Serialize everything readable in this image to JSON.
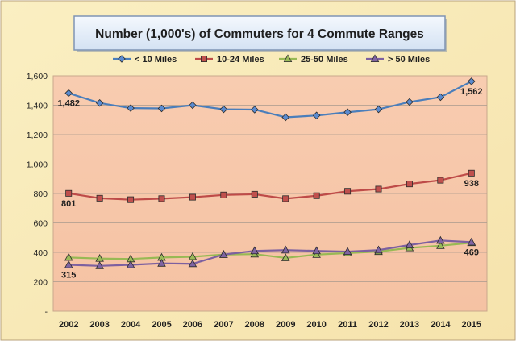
{
  "chart_data": {
    "type": "line",
    "title": "Number (1,000's) of Commuters for 4 Commute Ranges",
    "categories": [
      "2002",
      "2003",
      "2004",
      "2005",
      "2006",
      "2007",
      "2008",
      "2009",
      "2010",
      "2011",
      "2012",
      "2013",
      "2014",
      "2015"
    ],
    "ylim": [
      0,
      1600
    ],
    "yticks": [
      0,
      200,
      400,
      600,
      800,
      1000,
      1200,
      1400,
      1600
    ],
    "ytick_labels": [
      "-",
      "200",
      "400",
      "600",
      "800",
      "1,000",
      "1,200",
      "1,400",
      "1,600"
    ],
    "grid": true,
    "legend_position": "top",
    "series": [
      {
        "name": "< 10 Miles",
        "marker": "diamond",
        "color": "#4a7ebb",
        "fill": "#5b8bd0",
        "values": [
          1482,
          1415,
          1380,
          1378,
          1400,
          1372,
          1370,
          1318,
          1330,
          1352,
          1372,
          1422,
          1455,
          1562
        ],
        "labels": [
          {
            "index": 0,
            "text": "1,482",
            "position": "below"
          },
          {
            "index": 13,
            "text": "1,562",
            "position": "below"
          }
        ]
      },
      {
        "name": "10-24 Miles",
        "marker": "square",
        "color": "#be4b48",
        "fill": "#c0504d",
        "values": [
          801,
          768,
          758,
          765,
          775,
          790,
          795,
          765,
          785,
          815,
          830,
          865,
          890,
          938
        ],
        "labels": [
          {
            "index": 0,
            "text": "801",
            "position": "below"
          },
          {
            "index": 13,
            "text": "938",
            "position": "below"
          }
        ]
      },
      {
        "name": "25-50 Miles",
        "marker": "triangle",
        "color": "#98b954",
        "fill": "#9bbb59",
        "values": [
          365,
          358,
          355,
          365,
          370,
          385,
          388,
          362,
          385,
          395,
          405,
          430,
          445,
          465
        ],
        "labels": []
      },
      {
        "name": "> 50 Miles",
        "marker": "triangle",
        "color": "#7d60a0",
        "fill": "#8064a2",
        "values": [
          315,
          308,
          315,
          325,
          322,
          385,
          410,
          415,
          410,
          405,
          415,
          450,
          480,
          469
        ],
        "labels": [
          {
            "index": 0,
            "text": "315",
            "position": "below"
          },
          {
            "index": 13,
            "text": "469",
            "position": "below"
          }
        ]
      }
    ]
  }
}
